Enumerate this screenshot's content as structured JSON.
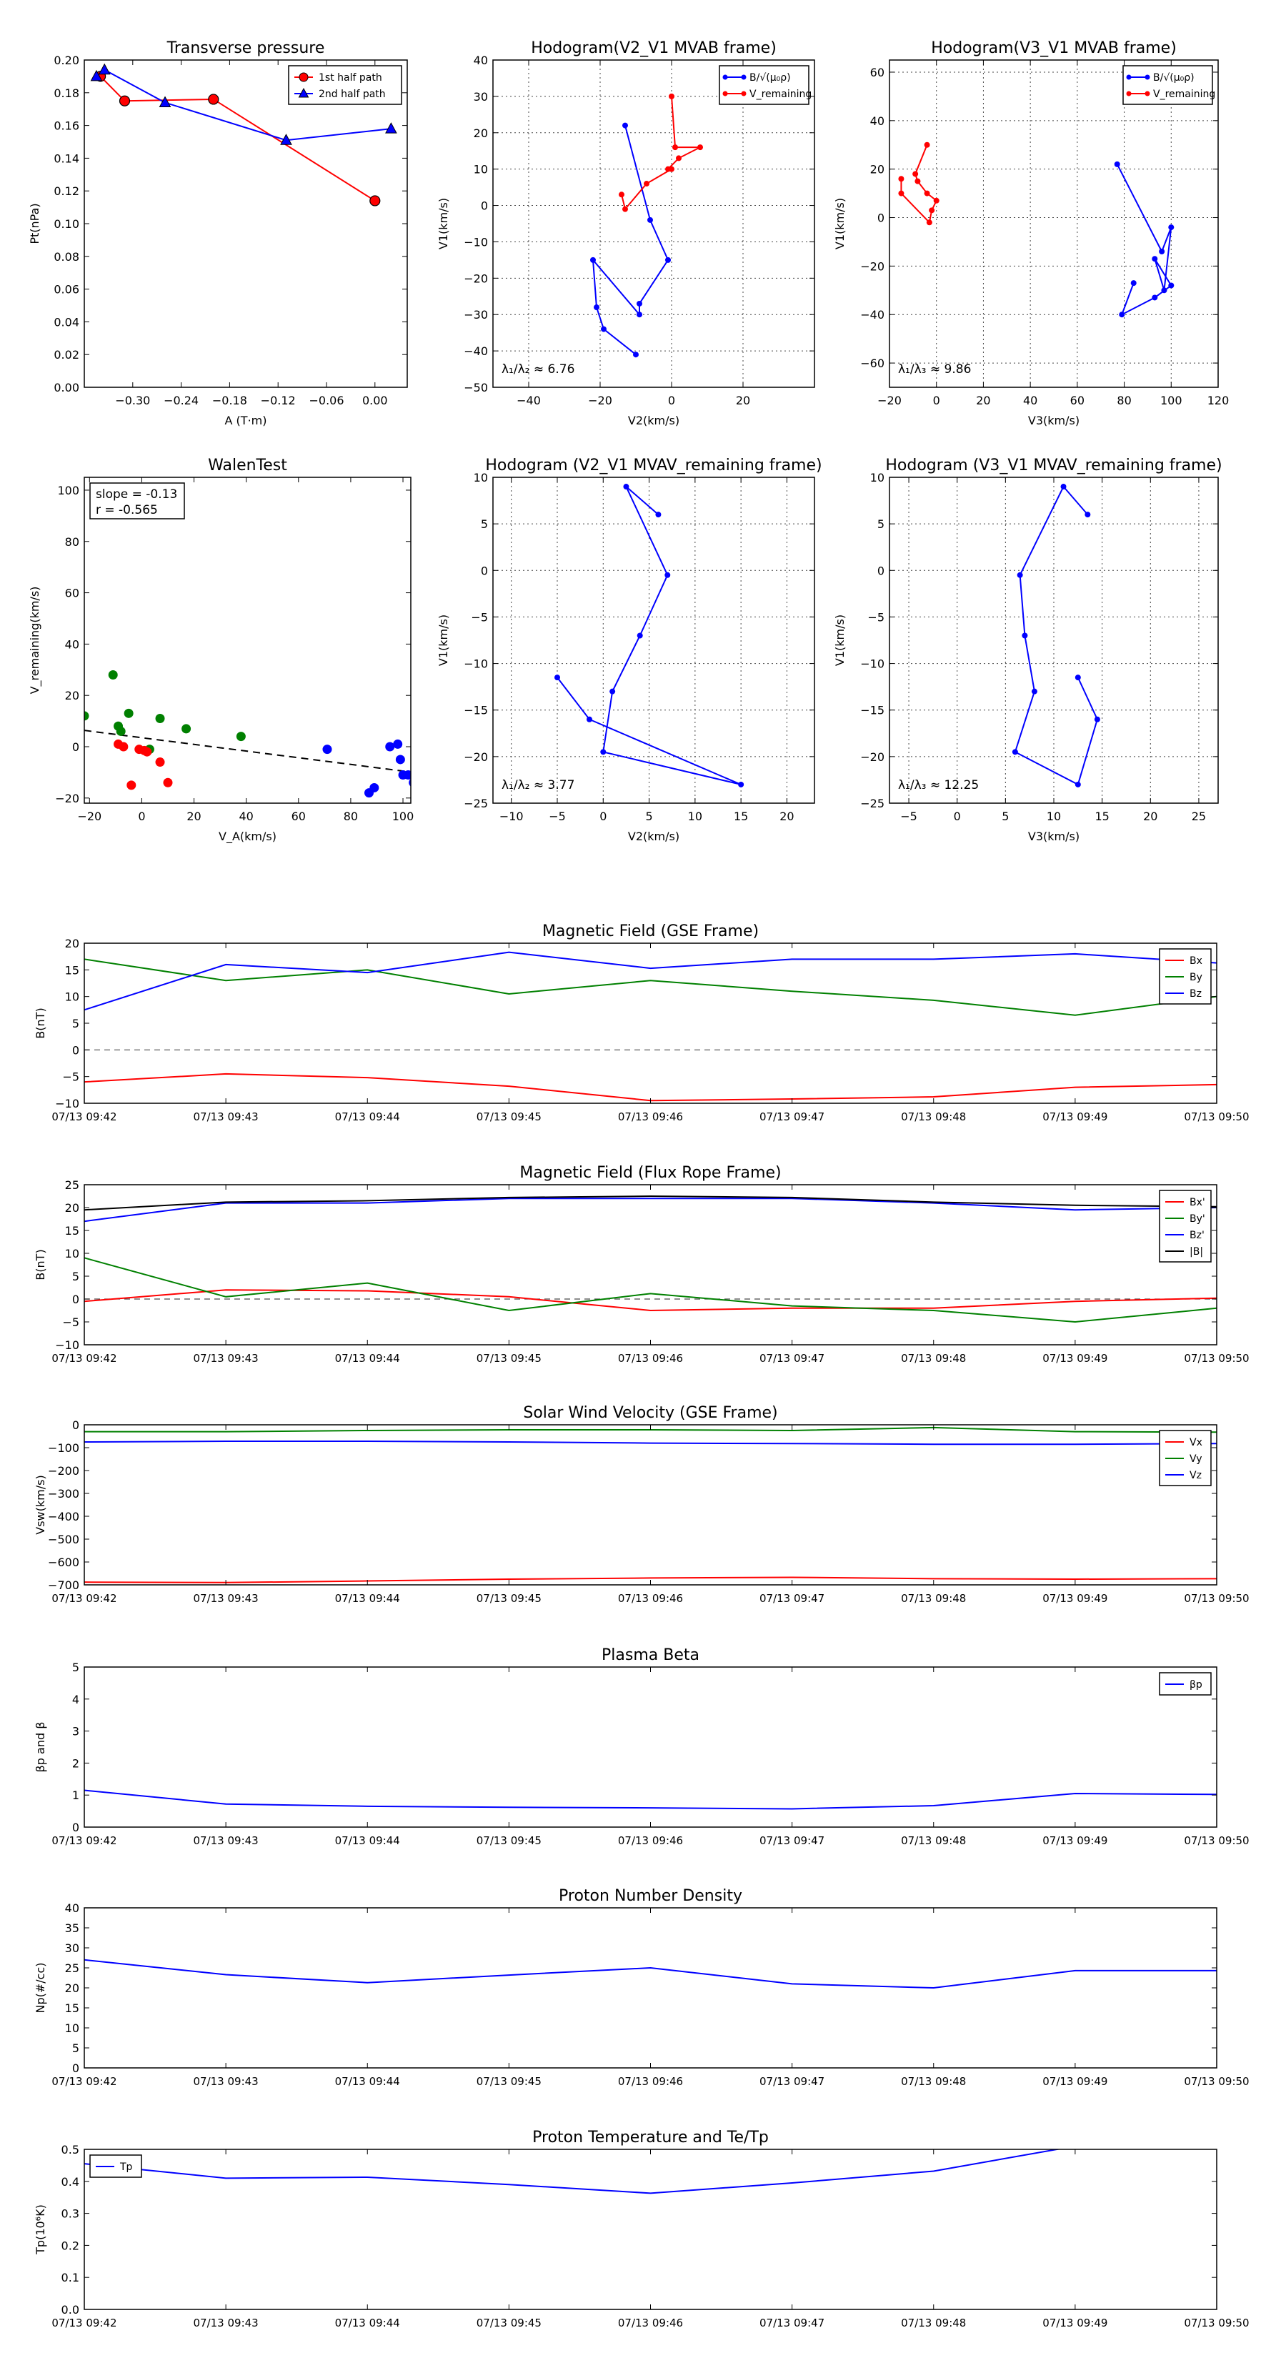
{
  "chart_data": [
    {
      "type": "line",
      "id": "tp",
      "title": "Transverse pressure",
      "xlabel": "A (T·m)",
      "ylabel": "Pt(nPa)",
      "xlim": [
        -0.36,
        0.04
      ],
      "ylim": [
        0.0,
        0.2
      ],
      "xticks": [
        -0.3,
        -0.24,
        -0.18,
        -0.12,
        -0.06,
        0.0
      ],
      "xtick_labels": [
        "−0.30",
        "−0.24",
        "−0.18",
        "−0.12",
        "−0.06",
        "0.00"
      ],
      "yticks": [
        0.0,
        0.02,
        0.04,
        0.06,
        0.08,
        0.1,
        0.12,
        0.14,
        0.16,
        0.18,
        0.2
      ],
      "ytick_labels": [
        "0.00",
        "0.02",
        "0.04",
        "0.06",
        "0.08",
        "0.10",
        "0.12",
        "0.14",
        "0.16",
        "0.18",
        "0.20"
      ],
      "grid": false,
      "legend_position": "top-right",
      "series": [
        {
          "name": "1st half path",
          "color": "#ff0000",
          "marker": "circle",
          "x": [
            0.0,
            -0.2,
            -0.31,
            -0.34
          ],
          "y": [
            0.114,
            0.176,
            0.175,
            0.19
          ]
        },
        {
          "name": "2nd half path",
          "color": "#0000ff",
          "marker": "triangle",
          "x": [
            -0.345,
            -0.335,
            -0.26,
            -0.11,
            0.02
          ],
          "y": [
            0.19,
            0.194,
            0.174,
            0.151,
            0.158
          ]
        }
      ]
    },
    {
      "type": "line",
      "id": "hodo1",
      "title": "Hodogram(V2_V1 MVAB frame)",
      "xlabel": "V2(km/s)",
      "ylabel": "V1(km/s)",
      "xlim": [
        -50,
        40
      ],
      "ylim": [
        -50,
        40
      ],
      "xticks": [
        -40,
        -20,
        0,
        20
      ],
      "xtick_labels": [
        "−40",
        "−20",
        "0",
        "20"
      ],
      "yticks": [
        -50,
        -40,
        -30,
        -20,
        -10,
        0,
        10,
        20,
        30,
        40
      ],
      "ytick_labels": [
        "−50",
        "−40",
        "−30",
        "−20",
        "−10",
        "0",
        "10",
        "20",
        "30",
        "40"
      ],
      "grid": true,
      "legend_position": "top-right",
      "annotation": "λ₁/λ₂ ≈ 6.76",
      "series": [
        {
          "name": "B/√(μ₀ρ)",
          "color": "#0000ff",
          "marker": "dot",
          "x": [
            -13,
            -6,
            -1,
            -9,
            -9,
            -22,
            -21,
            -19,
            -10
          ],
          "y": [
            22,
            -4,
            -15,
            -27,
            -30,
            -15,
            -28,
            -34,
            -41
          ]
        },
        {
          "name": "V_remaining",
          "color": "#ff0000",
          "marker": "dot",
          "x": [
            0,
            1,
            8,
            2,
            -1,
            0,
            -7,
            -13,
            -14
          ],
          "y": [
            30,
            16,
            16,
            13,
            10,
            10,
            6,
            -1,
            3
          ]
        }
      ]
    },
    {
      "type": "line",
      "id": "hodo2",
      "title": "Hodogram(V3_V1 MVAB frame)",
      "xlabel": "V3(km/s)",
      "ylabel": "V1(km/s)",
      "xlim": [
        -20,
        120
      ],
      "ylim": [
        -70,
        65
      ],
      "xticks": [
        -20,
        0,
        20,
        40,
        60,
        80,
        100,
        120
      ],
      "xtick_labels": [
        "−20",
        "0",
        "20",
        "40",
        "60",
        "80",
        "100",
        "120"
      ],
      "yticks": [
        -60,
        -40,
        -20,
        0,
        20,
        40,
        60
      ],
      "ytick_labels": [
        "−60",
        "−40",
        "−20",
        "0",
        "20",
        "40",
        "60"
      ],
      "grid": true,
      "legend_position": "top-right",
      "annotation": "λ₁/λ₃ ≈ 9.86",
      "series": [
        {
          "name": "B/√(μ₀ρ)",
          "color": "#0000ff",
          "marker": "dot",
          "x": [
            77,
            96,
            100,
            97,
            93,
            100,
            93,
            79,
            84
          ],
          "y": [
            22,
            -14,
            -4,
            -30,
            -17,
            -28,
            -33,
            -40,
            -27
          ]
        },
        {
          "name": "V_remaining",
          "color": "#ff0000",
          "marker": "dot",
          "x": [
            -4,
            -9,
            -8,
            -4,
            0,
            -2,
            -3,
            -15,
            -15
          ],
          "y": [
            30,
            18,
            15,
            10,
            7,
            3,
            -2,
            10,
            16
          ]
        }
      ]
    },
    {
      "type": "scatter",
      "id": "walen",
      "title": "WalenTest",
      "xlabel": "V_A(km/s)",
      "ylabel": "V_remaining(km/s)",
      "xlim": [
        -22,
        103
      ],
      "ylim": [
        -22,
        105
      ],
      "xticks": [
        -20,
        0,
        20,
        40,
        60,
        80,
        100
      ],
      "xtick_labels": [
        "−20",
        "0",
        "20",
        "40",
        "60",
        "80",
        "100"
      ],
      "yticks": [
        -20,
        0,
        20,
        40,
        60,
        80,
        100
      ],
      "ytick_labels": [
        "−20",
        "0",
        "20",
        "40",
        "60",
        "80",
        "100"
      ],
      "grid": false,
      "annotation_lines": [
        "slope = -0.13",
        "r = -0.565"
      ],
      "fit_line": {
        "slope": -0.13,
        "intercept": 3.5
      },
      "series": [
        {
          "name": "",
          "color": "#008000",
          "x": [
            -22,
            -11,
            -9,
            -8,
            -5,
            3,
            7,
            17,
            38
          ],
          "y": [
            12,
            28,
            8,
            6,
            13,
            -1,
            11,
            7,
            4
          ]
        },
        {
          "name": "",
          "color": "#ff0000",
          "x": [
            -9,
            -7,
            -4,
            -1,
            1,
            2,
            7,
            10
          ],
          "y": [
            1,
            0,
            -15,
            -1,
            -1.5,
            -2,
            -6,
            -14
          ]
        },
        {
          "name": "",
          "color": "#0000ff",
          "x": [
            71,
            87,
            89,
            95,
            98,
            99,
            100,
            102,
            104
          ],
          "y": [
            -1,
            -18,
            -16,
            0,
            1,
            -5,
            -11,
            -11,
            -14
          ]
        }
      ]
    },
    {
      "type": "line",
      "id": "hodo3",
      "title": "Hodogram (V2_V1 MVAV_remaining frame)",
      "xlabel": "V2(km/s)",
      "ylabel": "V1(km/s)",
      "xlim": [
        -12,
        23
      ],
      "ylim": [
        -25,
        10
      ],
      "xticks": [
        -10,
        -5,
        0,
        5,
        10,
        15,
        20
      ],
      "xtick_labels": [
        "−10",
        "−5",
        "0",
        "5",
        "10",
        "15",
        "20"
      ],
      "yticks": [
        -25,
        -20,
        -15,
        -10,
        -5,
        0,
        5,
        10
      ],
      "ytick_labels": [
        "−25",
        "−20",
        "−15",
        "−10",
        "−5",
        "0",
        "5",
        "10"
      ],
      "grid": true,
      "annotation": "λ₁/λ₂ ≈ 3.77",
      "series": [
        {
          "name": "",
          "color": "#0000ff",
          "marker": "dot",
          "x": [
            6,
            2.5,
            7,
            4,
            1,
            0,
            15,
            -1.5,
            -5
          ],
          "y": [
            6,
            9,
            -0.5,
            -7,
            -13,
            -19.5,
            -23,
            -16,
            -11.5
          ]
        }
      ]
    },
    {
      "type": "line",
      "id": "hodo4",
      "title": "Hodogram (V3_V1 MVAV_remaining frame)",
      "xlabel": "V3(km/s)",
      "ylabel": "V1(km/s)",
      "xlim": [
        -7,
        27
      ],
      "ylim": [
        -25,
        10
      ],
      "xticks": [
        -5,
        0,
        5,
        10,
        15,
        20,
        25
      ],
      "xtick_labels": [
        "−5",
        "0",
        "5",
        "10",
        "15",
        "20",
        "25"
      ],
      "yticks": [
        -25,
        -20,
        -15,
        -10,
        -5,
        0,
        5,
        10
      ],
      "ytick_labels": [
        "−25",
        "−20",
        "−15",
        "−10",
        "−5",
        "0",
        "5",
        "10"
      ],
      "grid": true,
      "annotation": "λ₁/λ₃ ≈ 12.25",
      "series": [
        {
          "name": "",
          "color": "#0000ff",
          "marker": "dot",
          "x": [
            13.5,
            11,
            6.5,
            7,
            8,
            6,
            12.5,
            14.5,
            12.5
          ],
          "y": [
            6,
            9,
            -0.5,
            -7,
            -13,
            -19.5,
            -23,
            -16,
            -11.5
          ]
        }
      ]
    },
    {
      "type": "line",
      "id": "bgse",
      "title": "Magnetic Field (GSE Frame)",
      "ylabel": "B(nT)",
      "categories": [
        "07/13 09:42",
        "07/13 09:43",
        "07/13 09:44",
        "07/13 09:45",
        "07/13 09:46",
        "07/13 09:47",
        "07/13 09:48",
        "07/13 09:49",
        "07/13 09:50"
      ],
      "ylim": [
        -10,
        20
      ],
      "yticks": [
        -10,
        -5,
        0,
        5,
        10,
        15,
        20
      ],
      "ytick_labels": [
        "−10",
        "−5",
        "0",
        "5",
        "10",
        "15",
        "20"
      ],
      "zero_line": true,
      "legend_position": "top-right",
      "series": [
        {
          "name": "Bx",
          "color": "#ff0000",
          "values": [
            -6,
            -4.5,
            -5.2,
            -6.8,
            -9.5,
            -9.2,
            -8.8,
            -7.0,
            -6.5
          ]
        },
        {
          "name": "By",
          "color": "#008000",
          "values": [
            17,
            13,
            15,
            10.5,
            13,
            11,
            9.3,
            6.5,
            10
          ]
        },
        {
          "name": "Bz",
          "color": "#0000ff",
          "values": [
            7.5,
            16,
            14.5,
            18.3,
            15.3,
            17,
            17,
            18,
            16.3
          ]
        }
      ]
    },
    {
      "type": "line",
      "id": "bfr",
      "title": "Magnetic Field (Flux Rope Frame)",
      "ylabel": "B(nT)",
      "categories": [
        "07/13 09:42",
        "07/13 09:43",
        "07/13 09:44",
        "07/13 09:45",
        "07/13 09:46",
        "07/13 09:47",
        "07/13 09:48",
        "07/13 09:49",
        "07/13 09:50"
      ],
      "ylim": [
        -10,
        25
      ],
      "yticks": [
        -10,
        -5,
        0,
        5,
        10,
        15,
        20,
        25
      ],
      "ytick_labels": [
        "−10",
        "−5",
        "0",
        "5",
        "10",
        "15",
        "20",
        "25"
      ],
      "zero_line": true,
      "legend_position": "top-right",
      "series": [
        {
          "name": "Bx'",
          "color": "#ff0000",
          "values": [
            -0.5,
            2,
            1.8,
            0.5,
            -2.5,
            -2.0,
            -2.0,
            -0.5,
            0.2
          ]
        },
        {
          "name": "By'",
          "color": "#008000",
          "values": [
            9,
            0.5,
            3.5,
            -2.5,
            1.2,
            -1.5,
            -2.5,
            -5.0,
            -2
          ]
        },
        {
          "name": "Bz'",
          "color": "#0000ff",
          "values": [
            17,
            21,
            21,
            22,
            22,
            22,
            21,
            19.5,
            20
          ]
        },
        {
          "name": "|B|",
          "color": "#000000",
          "values": [
            19.5,
            21.2,
            21.5,
            22.2,
            22.5,
            22.2,
            21.2,
            20.5,
            20.2
          ]
        }
      ]
    },
    {
      "type": "line",
      "id": "vsw",
      "title": "Solar Wind Velocity (GSE Frame)",
      "ylabel": "Vsw(km/s)",
      "categories": [
        "07/13 09:42",
        "07/13 09:43",
        "07/13 09:44",
        "07/13 09:45",
        "07/13 09:46",
        "07/13 09:47",
        "07/13 09:48",
        "07/13 09:49",
        "07/13 09:50"
      ],
      "ylim": [
        -700,
        0
      ],
      "yticks": [
        -700,
        -600,
        -500,
        -400,
        -300,
        -200,
        -100,
        0
      ],
      "ytick_labels": [
        "−700",
        "−600",
        "−500",
        "−400",
        "−300",
        "−200",
        "−100",
        "0"
      ],
      "legend_position": "top-right",
      "series": [
        {
          "name": "Vx",
          "color": "#ff0000",
          "values": [
            -688,
            -690,
            -683,
            -675,
            -670,
            -667,
            -673,
            -675,
            -673
          ]
        },
        {
          "name": "Vy",
          "color": "#008000",
          "values": [
            -30,
            -30,
            -25,
            -22,
            -22,
            -25,
            -12,
            -30,
            -32
          ]
        },
        {
          "name": "Vz",
          "color": "#0000ff",
          "values": [
            -75,
            -72,
            -72,
            -75,
            -80,
            -82,
            -85,
            -85,
            -82
          ]
        }
      ]
    },
    {
      "type": "line",
      "id": "beta",
      "title": "Plasma Beta",
      "ylabel": "βp and β",
      "categories": [
        "07/13 09:42",
        "07/13 09:43",
        "07/13 09:44",
        "07/13 09:45",
        "07/13 09:46",
        "07/13 09:47",
        "07/13 09:48",
        "07/13 09:49",
        "07/13 09:50"
      ],
      "ylim": [
        0,
        5
      ],
      "yticks": [
        0,
        1,
        2,
        3,
        4,
        5
      ],
      "ytick_labels": [
        "0",
        "1",
        "2",
        "3",
        "4",
        "5"
      ],
      "legend_position": "top-right",
      "series": [
        {
          "name": "βp",
          "color": "#0000ff",
          "values": [
            1.15,
            0.72,
            0.65,
            0.62,
            0.6,
            0.57,
            0.67,
            1.05,
            1.02
          ]
        }
      ]
    },
    {
      "type": "line",
      "id": "np",
      "title": "Proton Number Density",
      "ylabel": "Np(#/cc)",
      "categories": [
        "07/13 09:42",
        "07/13 09:43",
        "07/13 09:44",
        "07/13 09:45",
        "07/13 09:46",
        "07/13 09:47",
        "07/13 09:48",
        "07/13 09:49",
        "07/13 09:50"
      ],
      "ylim": [
        0,
        40
      ],
      "yticks": [
        0,
        5,
        10,
        15,
        20,
        25,
        30,
        35,
        40
      ],
      "ytick_labels": [
        "0",
        "5",
        "10",
        "15",
        "20",
        "25",
        "30",
        "35",
        "40"
      ],
      "series": [
        {
          "name": "",
          "color": "#0000ff",
          "values": [
            27,
            23.3,
            21.3,
            23.2,
            25,
            21,
            20,
            24.3,
            24.3
          ]
        }
      ]
    },
    {
      "type": "line",
      "id": "tpr",
      "title": "Proton Temperature and Te/Tp",
      "ylabel": "Tp(10⁶K)",
      "categories": [
        "07/13 09:42",
        "07/13 09:43",
        "07/13 09:44",
        "07/13 09:45",
        "07/13 09:46",
        "07/13 09:47",
        "07/13 09:48",
        "07/13 09:49",
        "07/13 09:50"
      ],
      "ylim": [
        0,
        0.5
      ],
      "yticks": [
        0,
        0.1,
        0.2,
        0.3,
        0.4,
        0.5
      ],
      "ytick_labels": [
        "0.0",
        "0.1",
        "0.2",
        "0.3",
        "0.4",
        "0.5"
      ],
      "legend_position": "top-left",
      "series": [
        {
          "name": "Tp",
          "color": "#0000ff",
          "values": [
            0.455,
            0.41,
            0.413,
            0.39,
            0.363,
            0.395,
            0.432,
            0.51,
            0.51
          ]
        }
      ]
    }
  ]
}
